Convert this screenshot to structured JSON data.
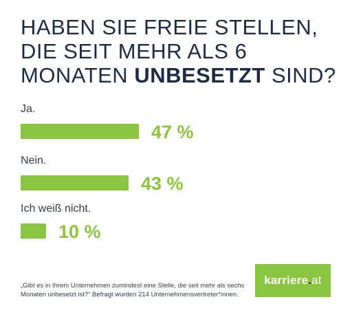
{
  "header": {
    "title_part1": "HABEN SIE FREIE STELLEN, DIE SEIT MEHR ALS 6 MONATEN",
    "title_emph": "UNBESETZT",
    "title_part2": "SIND?"
  },
  "chart_data": {
    "type": "bar",
    "orientation": "horizontal",
    "categories": [
      "Ja.",
      "Nein.",
      "Ich weiß nicht."
    ],
    "values": [
      47,
      43,
      10
    ],
    "value_labels": [
      "47 %",
      "43 %",
      "10 %"
    ],
    "unit": "%",
    "xlim": [
      0,
      100
    ],
    "grid": false,
    "legend": "none",
    "bar_color": "#8bc53f"
  },
  "footnote": "„Gibt es in Ihrem Unternehmen zumindest eine Stelle, die seit mehr als sechs Monaten unbesetzt ist?“ Befragt wurden 214 Unternehmensvertreter*innen.",
  "brand": {
    "name": "karriere",
    "dot": ".",
    "tld": "at",
    "color": "#8bc53f",
    "dark": "#1d2a44"
  }
}
